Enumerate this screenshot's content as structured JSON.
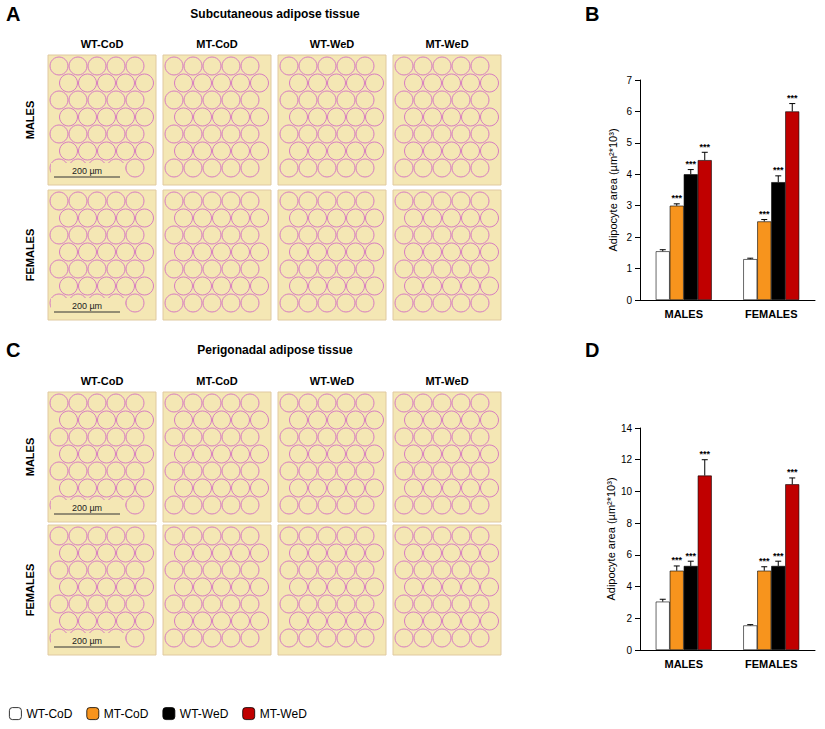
{
  "image_panels": [
    {
      "letter": "A",
      "title": "Subcutaneous adipose tissue",
      "columns": [
        "WT-CoD",
        "MT-CoD",
        "WT-WeD",
        "MT-WeD"
      ],
      "rows": [
        "MALES",
        "FEMALES"
      ],
      "scale_bar": "200 µm"
    },
    {
      "letter": "C",
      "title": "Perigonadal adipose tissue",
      "columns": [
        "WT-CoD",
        "MT-CoD",
        "WT-WeD",
        "MT-WeD"
      ],
      "rows": [
        "MALES",
        "FEMALES"
      ],
      "scale_bar": "200 µm"
    }
  ],
  "chart_data": [
    {
      "panel": "B",
      "type": "bar",
      "ylabel": "Adipocyte area (µm²*10³)",
      "categories": [
        "MALES",
        "FEMALES"
      ],
      "ylim": [
        0,
        7
      ],
      "yticks": [
        0,
        1,
        2,
        3,
        4,
        5,
        6,
        7
      ],
      "grid": false,
      "legend": "bottom left",
      "series": [
        {
          "name": "WT-CoD",
          "color": "#ffffff",
          "values": [
            1.55,
            1.3
          ],
          "errors": [
            0.05,
            0.03
          ]
        },
        {
          "name": "MT-CoD",
          "color": "#f7941d",
          "values": [
            3.0,
            2.5
          ],
          "errors": [
            0.06,
            0.06
          ],
          "significance": [
            "***",
            "***"
          ]
        },
        {
          "name": "WT-WeD",
          "color": "#000000",
          "values": [
            4.0,
            3.75
          ],
          "errors": [
            0.15,
            0.2
          ],
          "significance": [
            "***",
            "***"
          ]
        },
        {
          "name": "MT-WeD",
          "color": "#c00000",
          "values": [
            4.45,
            6.0
          ],
          "errors": [
            0.25,
            0.25
          ],
          "significance": [
            "***",
            "***"
          ]
        }
      ]
    },
    {
      "panel": "D",
      "type": "bar",
      "ylabel": "Adipocyte area (µm²*10³)",
      "categories": [
        "MALES",
        "FEMALES"
      ],
      "ylim": [
        0,
        14
      ],
      "yticks": [
        0,
        2,
        4,
        6,
        8,
        10,
        12,
        14
      ],
      "grid": false,
      "series": [
        {
          "name": "WT-CoD",
          "color": "#ffffff",
          "values": [
            3.05,
            1.55
          ],
          "errors": [
            0.15,
            0.05
          ]
        },
        {
          "name": "MT-CoD",
          "color": "#f7941d",
          "values": [
            5.0,
            5.0
          ],
          "errors": [
            0.3,
            0.25
          ],
          "significance": [
            "***",
            "***"
          ]
        },
        {
          "name": "WT-WeD",
          "color": "#000000",
          "values": [
            5.3,
            5.3
          ],
          "errors": [
            0.3,
            0.3
          ],
          "significance": [
            "***",
            "***"
          ]
        },
        {
          "name": "MT-WeD",
          "color": "#c00000",
          "values": [
            11.0,
            10.45
          ],
          "errors": [
            1.0,
            0.4
          ],
          "significance": [
            "***",
            "***"
          ]
        }
      ]
    }
  ]
}
